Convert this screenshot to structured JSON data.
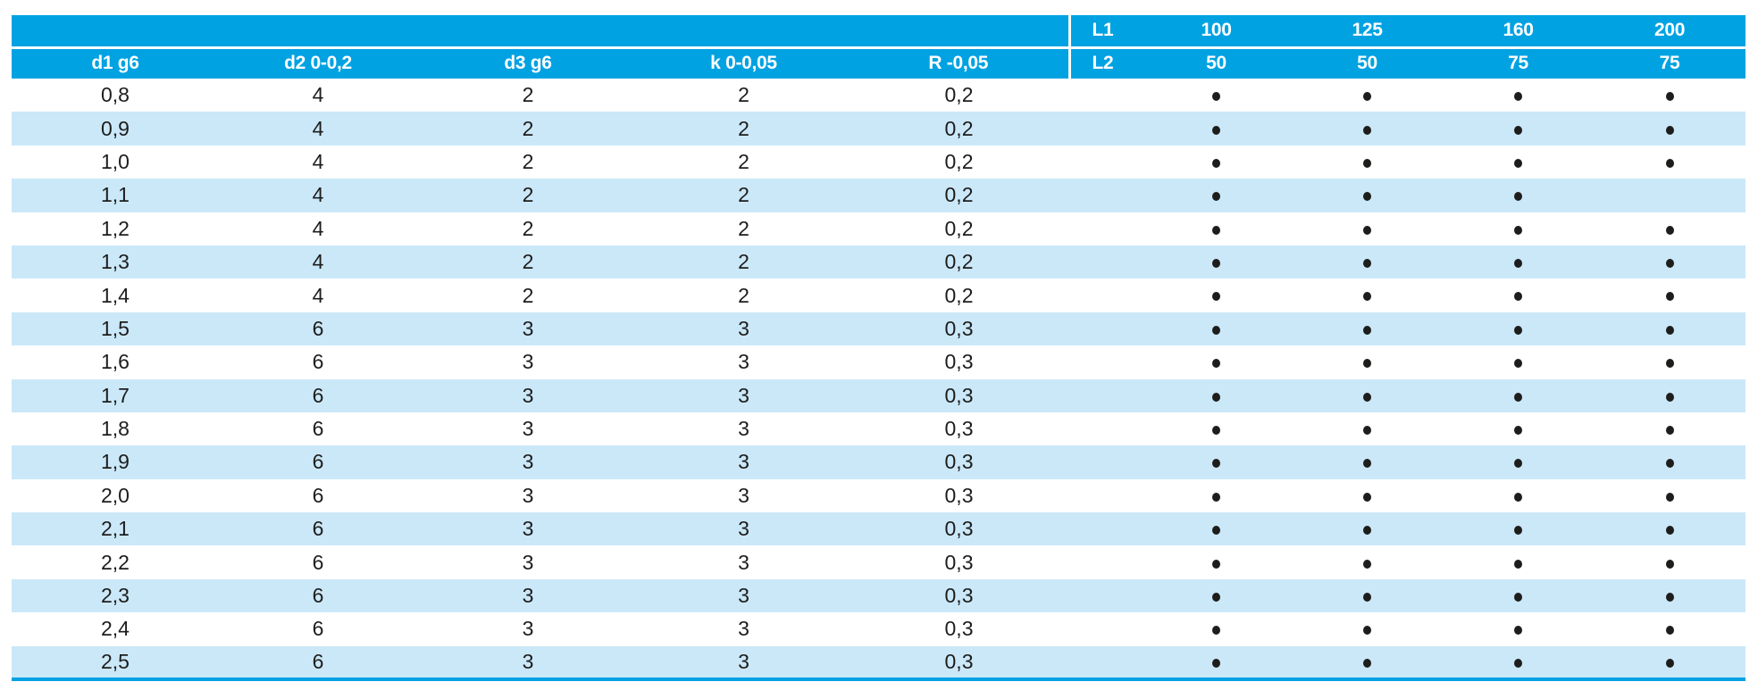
{
  "table": {
    "colors": {
      "accent": "#00a2e2",
      "stripe": "#cbe8f9",
      "ink": "#1d1d1b"
    },
    "header": {
      "d1": "d1 g6",
      "d2": "d2 0-0,2",
      "d3": "d3 g6",
      "k": "k 0-0,05",
      "r": "R -0,05",
      "l1_label": "L1",
      "l2_label": "L2",
      "l1_values": [
        "100",
        "125",
        "160",
        "200"
      ],
      "l2_values": [
        "50",
        "50",
        "75",
        "75"
      ]
    },
    "availability_marker": "dot",
    "rows": [
      {
        "d1": "0,8",
        "d2": "4",
        "d3": "2",
        "k": "2",
        "r": "0,2",
        "availability": [
          1,
          1,
          1,
          1
        ]
      },
      {
        "d1": "0,9",
        "d2": "4",
        "d3": "2",
        "k": "2",
        "r": "0,2",
        "availability": [
          1,
          1,
          1,
          1
        ]
      },
      {
        "d1": "1,0",
        "d2": "4",
        "d3": "2",
        "k": "2",
        "r": "0,2",
        "availability": [
          1,
          1,
          1,
          1
        ]
      },
      {
        "d1": "1,1",
        "d2": "4",
        "d3": "2",
        "k": "2",
        "r": "0,2",
        "availability": [
          1,
          1,
          1,
          0
        ]
      },
      {
        "d1": "1,2",
        "d2": "4",
        "d3": "2",
        "k": "2",
        "r": "0,2",
        "availability": [
          1,
          1,
          1,
          1
        ]
      },
      {
        "d1": "1,3",
        "d2": "4",
        "d3": "2",
        "k": "2",
        "r": "0,2",
        "availability": [
          1,
          1,
          1,
          1
        ]
      },
      {
        "d1": "1,4",
        "d2": "4",
        "d3": "2",
        "k": "2",
        "r": "0,2",
        "availability": [
          1,
          1,
          1,
          1
        ]
      },
      {
        "d1": "1,5",
        "d2": "6",
        "d3": "3",
        "k": "3",
        "r": "0,3",
        "availability": [
          1,
          1,
          1,
          1
        ]
      },
      {
        "d1": "1,6",
        "d2": "6",
        "d3": "3",
        "k": "3",
        "r": "0,3",
        "availability": [
          1,
          1,
          1,
          1
        ]
      },
      {
        "d1": "1,7",
        "d2": "6",
        "d3": "3",
        "k": "3",
        "r": "0,3",
        "availability": [
          1,
          1,
          1,
          1
        ]
      },
      {
        "d1": "1,8",
        "d2": "6",
        "d3": "3",
        "k": "3",
        "r": "0,3",
        "availability": [
          1,
          1,
          1,
          1
        ]
      },
      {
        "d1": "1,9",
        "d2": "6",
        "d3": "3",
        "k": "3",
        "r": "0,3",
        "availability": [
          1,
          1,
          1,
          1
        ]
      },
      {
        "d1": "2,0",
        "d2": "6",
        "d3": "3",
        "k": "3",
        "r": "0,3",
        "availability": [
          1,
          1,
          1,
          1
        ]
      },
      {
        "d1": "2,1",
        "d2": "6",
        "d3": "3",
        "k": "3",
        "r": "0,3",
        "availability": [
          1,
          1,
          1,
          1
        ]
      },
      {
        "d1": "2,2",
        "d2": "6",
        "d3": "3",
        "k": "3",
        "r": "0,3",
        "availability": [
          1,
          1,
          1,
          1
        ]
      },
      {
        "d1": "2,3",
        "d2": "6",
        "d3": "3",
        "k": "3",
        "r": "0,3",
        "availability": [
          1,
          1,
          1,
          1
        ]
      },
      {
        "d1": "2,4",
        "d2": "6",
        "d3": "3",
        "k": "3",
        "r": "0,3",
        "availability": [
          1,
          1,
          1,
          1
        ]
      },
      {
        "d1": "2,5",
        "d2": "6",
        "d3": "3",
        "k": "3",
        "r": "0,3",
        "availability": [
          1,
          1,
          1,
          1
        ]
      }
    ]
  }
}
